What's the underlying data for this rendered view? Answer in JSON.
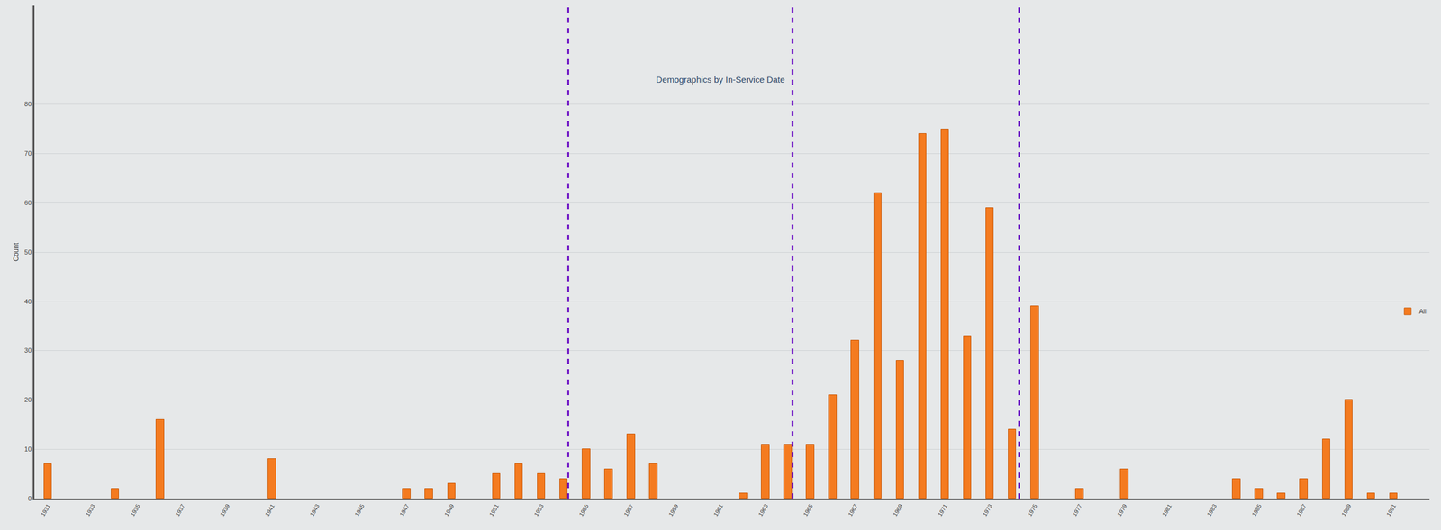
{
  "chart_data": {
    "type": "bar",
    "title": "Demographics by In-Service Date",
    "y_label": "Count",
    "x": [
      1931,
      1934,
      1936,
      1941,
      1947,
      1948,
      1949,
      1951,
      1952,
      1953,
      1954,
      1955,
      1956,
      1957,
      1958,
      1962,
      1963,
      1964,
      1965,
      1966,
      1967,
      1968,
      1969,
      1970,
      1971,
      1972,
      1973,
      1974,
      1975,
      1977,
      1979,
      1984,
      1985,
      1986,
      1987,
      1988,
      1989,
      1990,
      1991
    ],
    "series": [
      {
        "name": "All",
        "color": "#f47b20",
        "values": [
          7,
          2,
          16,
          8,
          2,
          2,
          3,
          5,
          7,
          5,
          4,
          10,
          6,
          13,
          7,
          1,
          11,
          11,
          11,
          21,
          32,
          62,
          28,
          74,
          75,
          33,
          59,
          14,
          39,
          2,
          6,
          4,
          2,
          1,
          4,
          12,
          20,
          1,
          1
        ]
      }
    ],
    "xlim": [
      1930.4,
      1992.6
    ],
    "xticks": [
      1931,
      1933,
      1935,
      1937,
      1939,
      1941,
      1943,
      1945,
      1947,
      1949,
      1951,
      1953,
      1955,
      1957,
      1959,
      1961,
      1963,
      1965,
      1967,
      1969,
      1971,
      1973,
      1975,
      1977,
      1979,
      1981,
      1983,
      1985,
      1987,
      1989,
      1991
    ],
    "ylim": [
      0,
      100
    ],
    "yticks": [
      0,
      10,
      20,
      30,
      40,
      50,
      60,
      70,
      80
    ],
    "vlines": [
      1954.2,
      1964.2,
      1974.3
    ],
    "grid": true,
    "legend": "right"
  }
}
